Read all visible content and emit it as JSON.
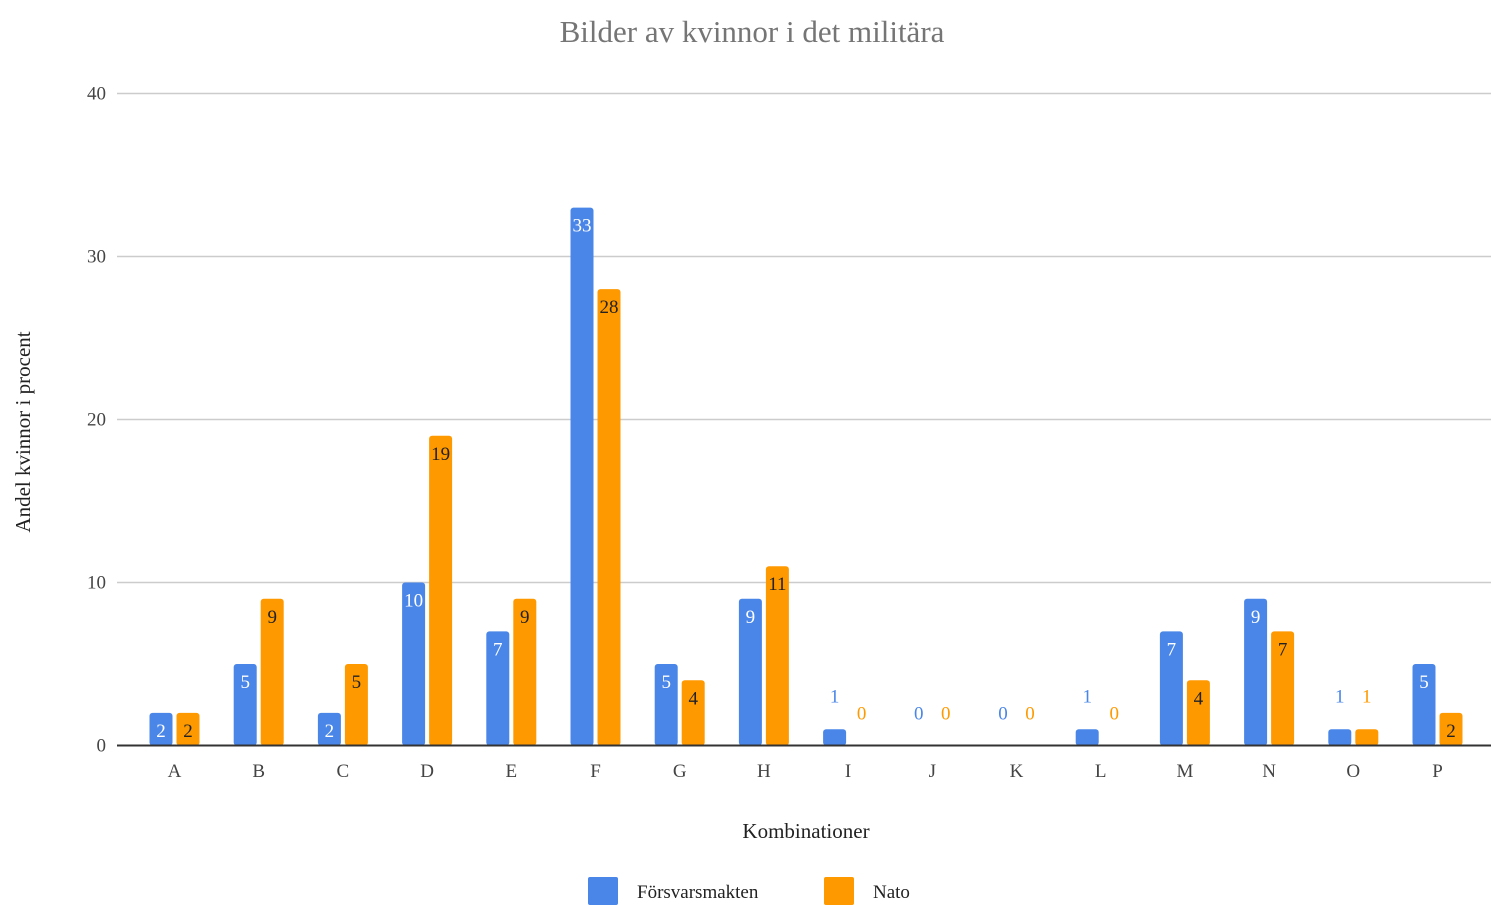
{
  "chart_data": {
    "type": "bar",
    "title": "Bilder av kvinnor i det militära",
    "xlabel": "Kombinationer",
    "ylabel": "Andel kvinnor i procent",
    "categories": [
      "A",
      "B",
      "C",
      "D",
      "E",
      "F",
      "G",
      "H",
      "I",
      "J",
      "K",
      "L",
      "M",
      "N",
      "O",
      "P"
    ],
    "series": [
      {
        "name": "Försvarsmakten",
        "color": "#4a86e8",
        "values": [
          2,
          5,
          2,
          10,
          7,
          33,
          5,
          9,
          1,
          0,
          0,
          1,
          7,
          9,
          1,
          5
        ]
      },
      {
        "name": "Nato",
        "color": "#ff9900",
        "values": [
          2,
          9,
          5,
          19,
          9,
          28,
          4,
          11,
          0,
          0,
          0,
          0,
          4,
          7,
          1,
          2
        ]
      }
    ],
    "ylim": [
      0,
      40
    ],
    "yticks": [
      0,
      10,
      20,
      30,
      40
    ],
    "grid": true,
    "legend_position": "bottom"
  }
}
